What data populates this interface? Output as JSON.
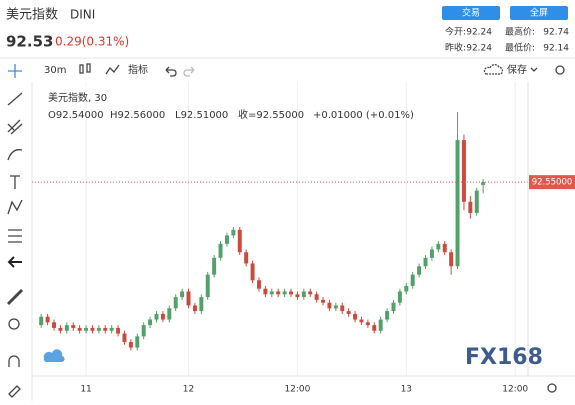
{
  "header": {
    "name": "美元指数",
    "code": "DINI",
    "price": "92.53",
    "change": "0.29(0.31%)",
    "buttons": [
      "交易",
      "全屏"
    ],
    "stats": [
      {
        "label": "今开:",
        "value": "92.24"
      },
      {
        "label": "最高价:",
        "value": "92.74"
      },
      {
        "label": "昨收:",
        "value": "92.24"
      },
      {
        "label": "最低价:",
        "value": "92.14"
      }
    ]
  },
  "toolbar": {
    "interval": "30m",
    "indicators": "指标",
    "save": "保存"
  },
  "legend": {
    "title": "美元指数, 30",
    "open": "O92.54000",
    "high": "H92.56000",
    "low": "L92.51000",
    "close": "收=92.55000",
    "change": "+0.01000 (+0.01%)"
  },
  "price_tag": "92.55000",
  "watermark": "FX168",
  "chart_data": {
    "type": "candlestick",
    "up_color": "#53a06b",
    "down_color": "#cc4a3d",
    "xlim": [
      -0.5,
      76
    ],
    "ylim": [
      91.88,
      92.95
    ],
    "xticks": [
      {
        "value": 7,
        "label": "11"
      },
      {
        "value": 23,
        "label": "12"
      },
      {
        "value": 40,
        "label": "12:00"
      },
      {
        "value": 57,
        "label": "13"
      },
      {
        "value": 74,
        "label": "12:00"
      }
    ],
    "open": [
      92.04,
      92.07,
      92.05,
      92.03,
      92.02,
      92.04,
      92.03,
      92.02,
      92.03,
      92.02,
      92.03,
      92.02,
      92.03,
      92.01,
      91.98,
      91.96,
      92.0,
      92.04,
      92.06,
      92.08,
      92.06,
      92.1,
      92.14,
      92.16,
      92.11,
      92.09,
      92.14,
      92.22,
      92.28,
      92.33,
      92.36,
      92.38,
      92.3,
      92.26,
      92.2,
      92.17,
      92.15,
      92.16,
      92.15,
      92.16,
      92.15,
      92.14,
      92.16,
      92.15,
      92.13,
      92.12,
      92.1,
      92.11,
      92.09,
      92.08,
      92.06,
      92.05,
      92.04,
      92.02,
      92.06,
      92.09,
      92.12,
      92.16,
      92.18,
      92.22,
      92.25,
      92.28,
      92.31,
      92.33,
      92.3,
      92.25,
      92.7,
      92.48,
      92.44,
      92.54
    ],
    "high": [
      92.08,
      92.08,
      92.06,
      92.04,
      92.05,
      92.05,
      92.04,
      92.04,
      92.04,
      92.04,
      92.04,
      92.04,
      92.04,
      92.02,
      91.99,
      92.01,
      92.05,
      92.07,
      92.09,
      92.09,
      92.11,
      92.15,
      92.17,
      92.17,
      92.12,
      92.15,
      92.23,
      92.29,
      92.34,
      92.37,
      92.39,
      92.39,
      92.31,
      92.27,
      92.21,
      92.18,
      92.17,
      92.17,
      92.17,
      92.17,
      92.16,
      92.17,
      92.17,
      92.16,
      92.14,
      92.13,
      92.12,
      92.12,
      92.1,
      92.09,
      92.07,
      92.06,
      92.05,
      92.07,
      92.1,
      92.13,
      92.17,
      92.19,
      92.23,
      92.26,
      92.29,
      92.32,
      92.34,
      92.34,
      92.31,
      92.8,
      92.72,
      92.5,
      92.53,
      92.56
    ],
    "low": [
      92.03,
      92.04,
      92.02,
      92.01,
      92.01,
      92.02,
      92.01,
      92.01,
      92.01,
      92.01,
      92.01,
      92.01,
      92.0,
      91.97,
      91.95,
      91.95,
      91.99,
      92.03,
      92.05,
      92.05,
      92.05,
      92.09,
      92.13,
      92.1,
      92.08,
      92.08,
      92.13,
      92.21,
      92.27,
      92.32,
      92.35,
      92.29,
      92.25,
      92.19,
      92.16,
      92.14,
      92.14,
      92.14,
      92.14,
      92.14,
      92.13,
      92.13,
      92.14,
      92.12,
      92.11,
      92.09,
      92.09,
      92.08,
      92.07,
      92.05,
      92.04,
      92.03,
      92.01,
      92.01,
      92.05,
      92.08,
      92.11,
      92.15,
      92.17,
      92.21,
      92.24,
      92.27,
      92.3,
      92.29,
      92.22,
      92.24,
      92.45,
      92.42,
      92.43,
      92.51
    ],
    "close": [
      92.07,
      92.05,
      92.03,
      92.02,
      92.04,
      92.03,
      92.02,
      92.03,
      92.02,
      92.03,
      92.02,
      92.03,
      92.01,
      91.98,
      91.96,
      92.0,
      92.04,
      92.06,
      92.08,
      92.06,
      92.1,
      92.14,
      92.16,
      92.11,
      92.09,
      92.14,
      92.22,
      92.28,
      92.33,
      92.36,
      92.38,
      92.3,
      92.26,
      92.2,
      92.17,
      92.15,
      92.16,
      92.15,
      92.16,
      92.15,
      92.14,
      92.16,
      92.15,
      92.13,
      92.12,
      92.1,
      92.11,
      92.09,
      92.08,
      92.06,
      92.05,
      92.04,
      92.02,
      92.06,
      92.09,
      92.12,
      92.16,
      92.18,
      92.22,
      92.25,
      92.28,
      92.31,
      92.33,
      92.3,
      92.25,
      92.7,
      92.48,
      92.44,
      92.52,
      92.55
    ]
  }
}
